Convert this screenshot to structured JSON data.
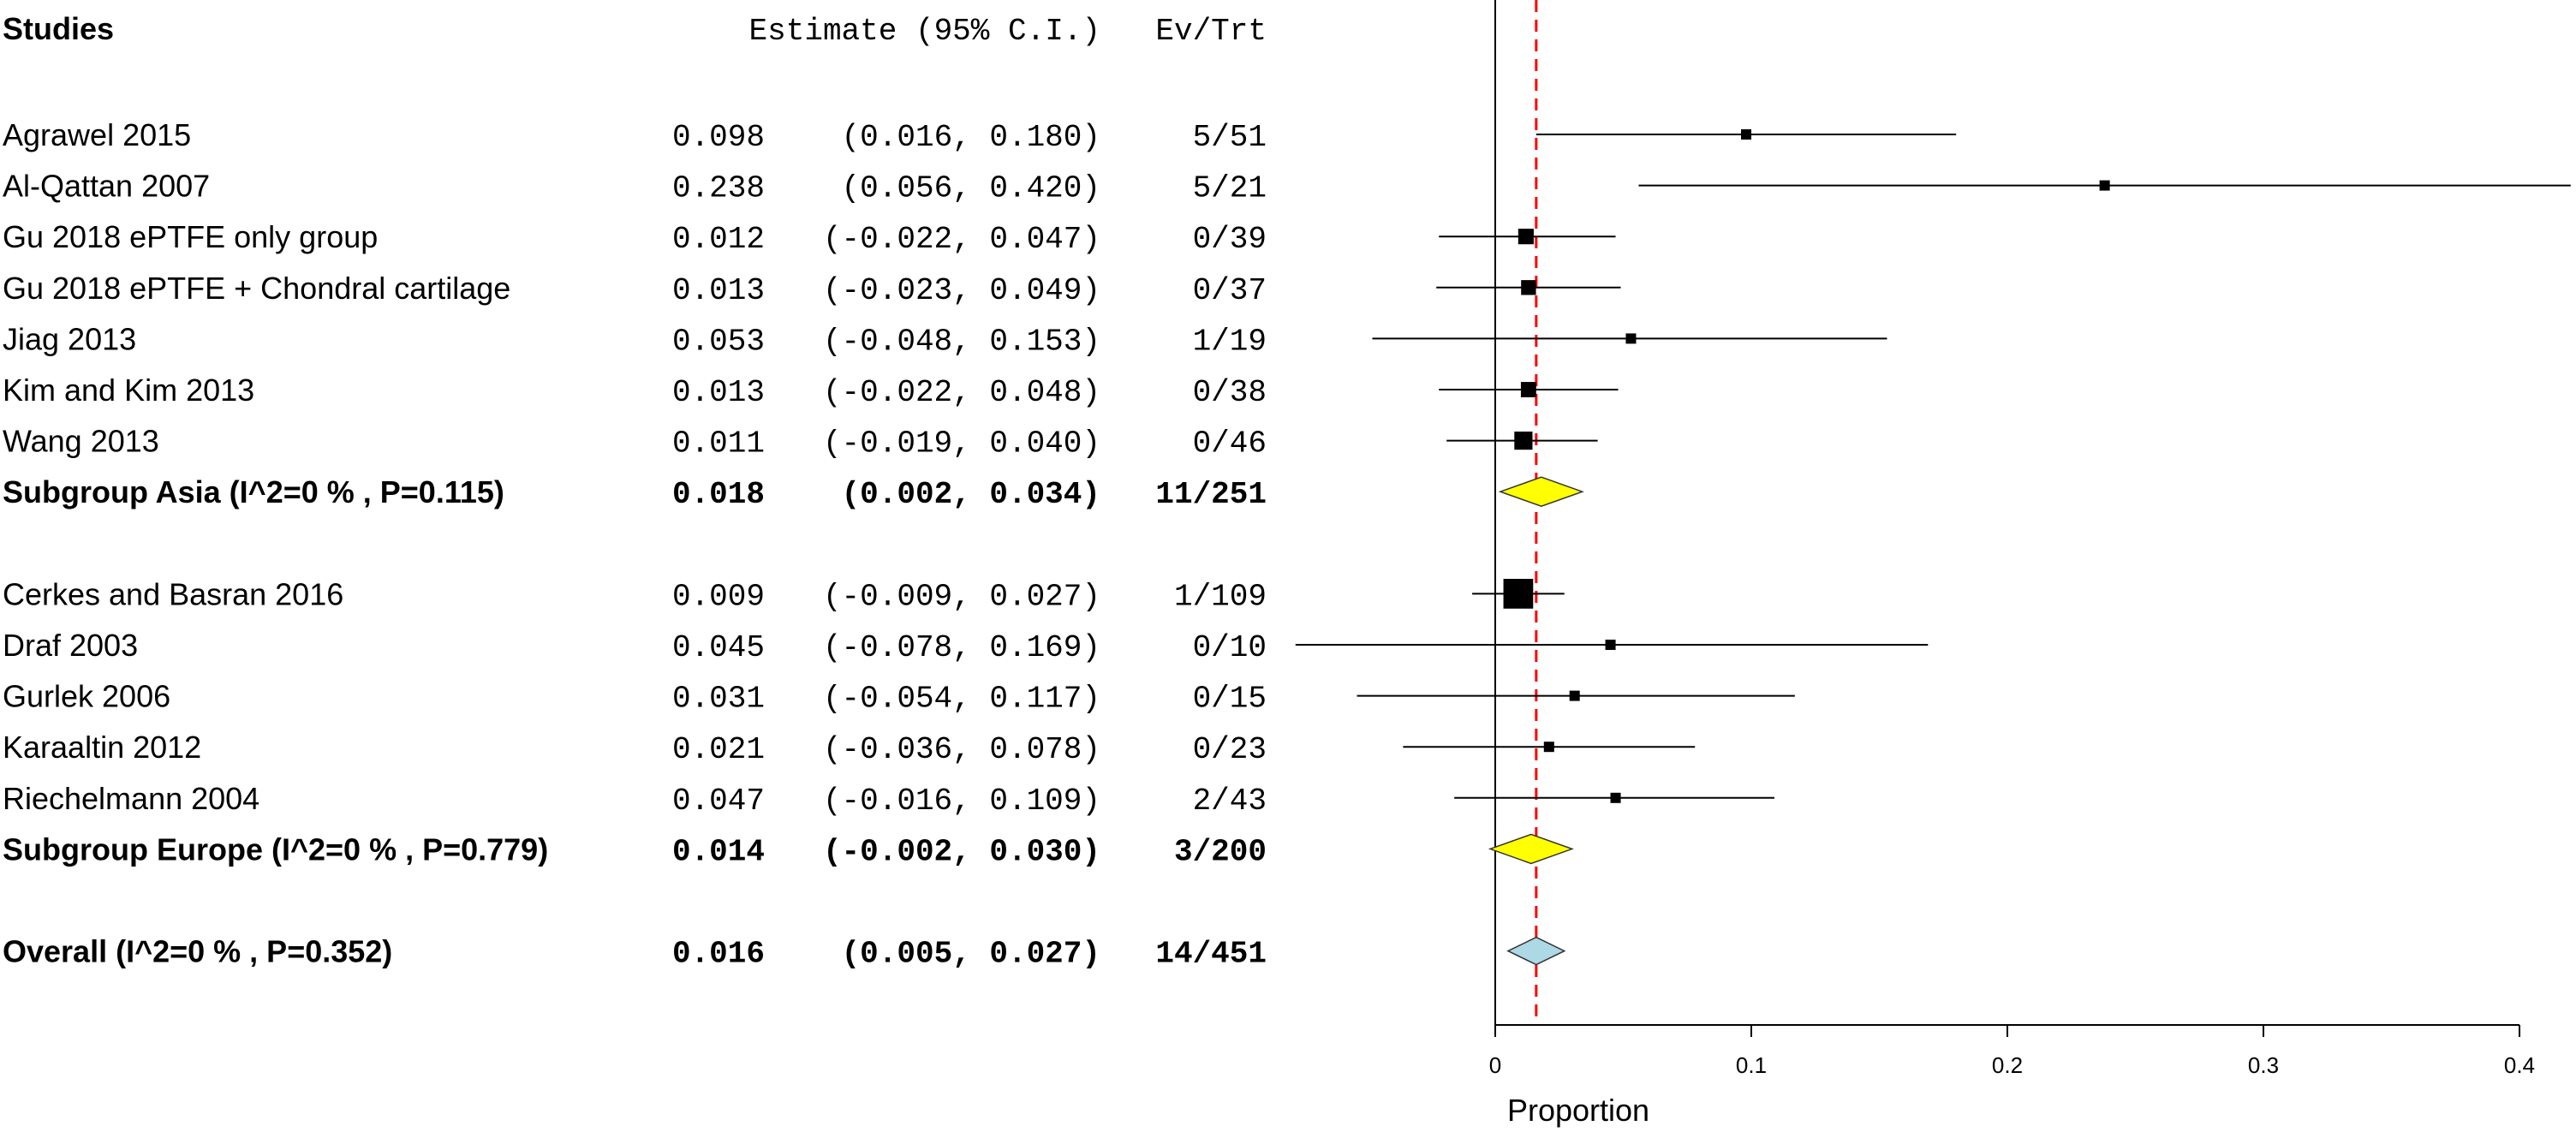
{
  "chart_data": {
    "type": "forest",
    "headers": {
      "studies": "Studies",
      "estimate": "Estimate (95% C.I.)",
      "events": "Ev/Trt"
    },
    "rows": [
      {
        "kind": "study",
        "label": "Agrawel 2015",
        "est_text": "0.098",
        "ci_text": "(0.016, 0.180)",
        "events": "5/51",
        "est": 0.098,
        "lo": 0.016,
        "hi": 0.18
      },
      {
        "kind": "study",
        "label": "Al-Qattan 2007",
        "est_text": "0.238",
        "ci_text": "(0.056, 0.420)",
        "events": "5/21",
        "est": 0.238,
        "lo": 0.056,
        "hi": 0.42
      },
      {
        "kind": "study",
        "label": "Gu 2018 ePTFE only group",
        "est_text": "0.012",
        "ci_text": "(-0.022, 0.047)",
        "events": "0/39",
        "est": 0.012,
        "lo": -0.022,
        "hi": 0.047
      },
      {
        "kind": "study",
        "label": "Gu 2018 ePTFE + Chondral cartilage",
        "est_text": "0.013",
        "ci_text": "(-0.023, 0.049)",
        "events": "0/37",
        "est": 0.013,
        "lo": -0.023,
        "hi": 0.049
      },
      {
        "kind": "study",
        "label": "Jiag 2013",
        "est_text": "0.053",
        "ci_text": "(-0.048, 0.153)",
        "events": "1/19",
        "est": 0.053,
        "lo": -0.048,
        "hi": 0.153
      },
      {
        "kind": "study",
        "label": "Kim and Kim 2013",
        "est_text": "0.013",
        "ci_text": "(-0.022, 0.048)",
        "events": "0/38",
        "est": 0.013,
        "lo": -0.022,
        "hi": 0.048
      },
      {
        "kind": "study",
        "label": "Wang 2013",
        "est_text": "0.011",
        "ci_text": "(-0.019, 0.040)",
        "events": "0/46",
        "est": 0.011,
        "lo": -0.019,
        "hi": 0.04
      },
      {
        "kind": "subgroup",
        "label": "Subgroup Asia (I^2=0 % , P=0.115)",
        "est_text": "0.018",
        "ci_text": "(0.002, 0.034)",
        "events": "11/251",
        "est": 0.018,
        "lo": 0.002,
        "hi": 0.034
      },
      {
        "kind": "gap"
      },
      {
        "kind": "study",
        "label": "Cerkes and Basran 2016",
        "est_text": "0.009",
        "ci_text": "(-0.009, 0.027)",
        "events": "1/109",
        "est": 0.009,
        "lo": -0.009,
        "hi": 0.027
      },
      {
        "kind": "study",
        "label": "Draf 2003",
        "est_text": "0.045",
        "ci_text": "(-0.078, 0.169)",
        "events": "0/10",
        "est": 0.045,
        "lo": -0.078,
        "hi": 0.169
      },
      {
        "kind": "study",
        "label": "Gurlek 2006",
        "est_text": "0.031",
        "ci_text": "(-0.054, 0.117)",
        "events": "0/15",
        "est": 0.031,
        "lo": -0.054,
        "hi": 0.117
      },
      {
        "kind": "study",
        "label": "Karaaltin 2012",
        "est_text": "0.021",
        "ci_text": "(-0.036, 0.078)",
        "events": "0/23",
        "est": 0.021,
        "lo": -0.036,
        "hi": 0.078
      },
      {
        "kind": "study",
        "label": "Riechelmann 2004",
        "est_text": "0.047",
        "ci_text": "(-0.016, 0.109)",
        "events": "2/43",
        "est": 0.047,
        "lo": -0.016,
        "hi": 0.109
      },
      {
        "kind": "subgroup",
        "label": "Subgroup Europe (I^2=0 % , P=0.779)",
        "est_text": "0.014",
        "ci_text": "(-0.002, 0.030)",
        "events": "3/200",
        "est": 0.014,
        "lo": -0.002,
        "hi": 0.03
      },
      {
        "kind": "gap"
      },
      {
        "kind": "overall",
        "label": "Overall (I^2=0 % , P=0.352)",
        "est_text": "0.016",
        "ci_text": "(0.005, 0.027)",
        "events": "14/451",
        "est": 0.016,
        "lo": 0.005,
        "hi": 0.027
      }
    ],
    "xlabel": "Proportion",
    "xticks": [
      0,
      0.1,
      0.2,
      0.3,
      0.4
    ],
    "xtick_labels": [
      "0",
      "0.1",
      "0.2",
      "0.3",
      "0.4"
    ],
    "xlim": [
      -0.078,
      0.42
    ],
    "null_line": 0,
    "reference_line": 0.016,
    "colors": {
      "subgroup_diamond": "#ffff00",
      "overall_diamond": "#add8e6",
      "reference_line": "#ff0000",
      "marks": "#000000"
    }
  }
}
